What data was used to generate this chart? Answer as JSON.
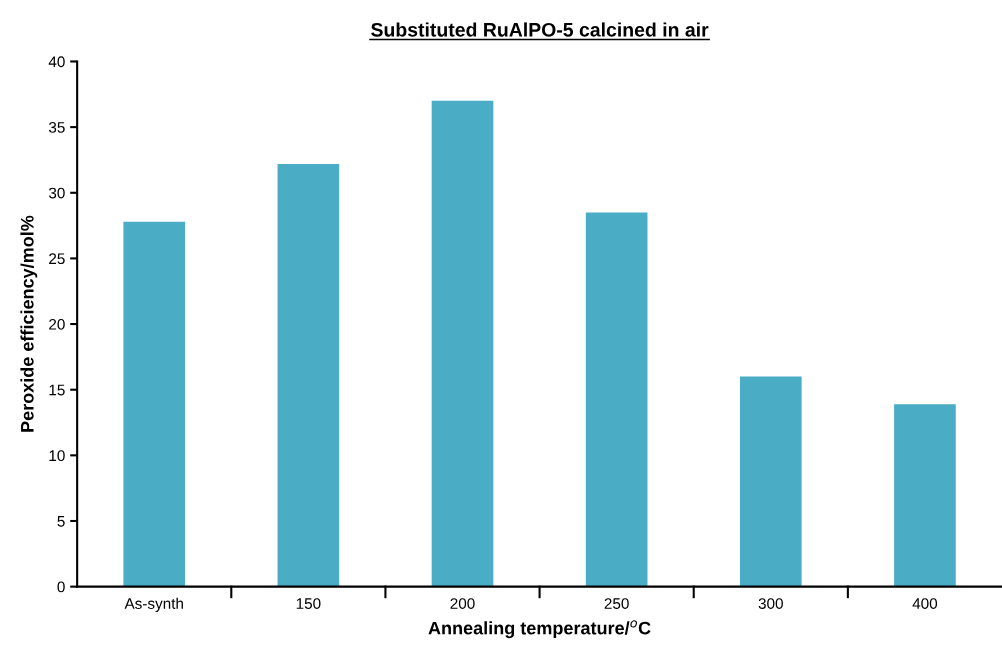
{
  "chart_data": {
    "type": "bar",
    "title": "Substituted RuAlPO-5 calcined in air",
    "xlabel": "Annealing temperature/$^{o}$C",
    "ylabel": "Peroxide efficiency/mol%",
    "categories": [
      "As-synth",
      "150",
      "200",
      "250",
      "300",
      "400"
    ],
    "values": [
      27.8,
      32.2,
      37.0,
      28.5,
      16.0,
      13.9
    ],
    "color": "#4bacc6",
    "ylim": [
      0,
      40
    ],
    "yticks": [
      0,
      5,
      10,
      15,
      20,
      25,
      30,
      35,
      40
    ],
    "grid": false
  }
}
